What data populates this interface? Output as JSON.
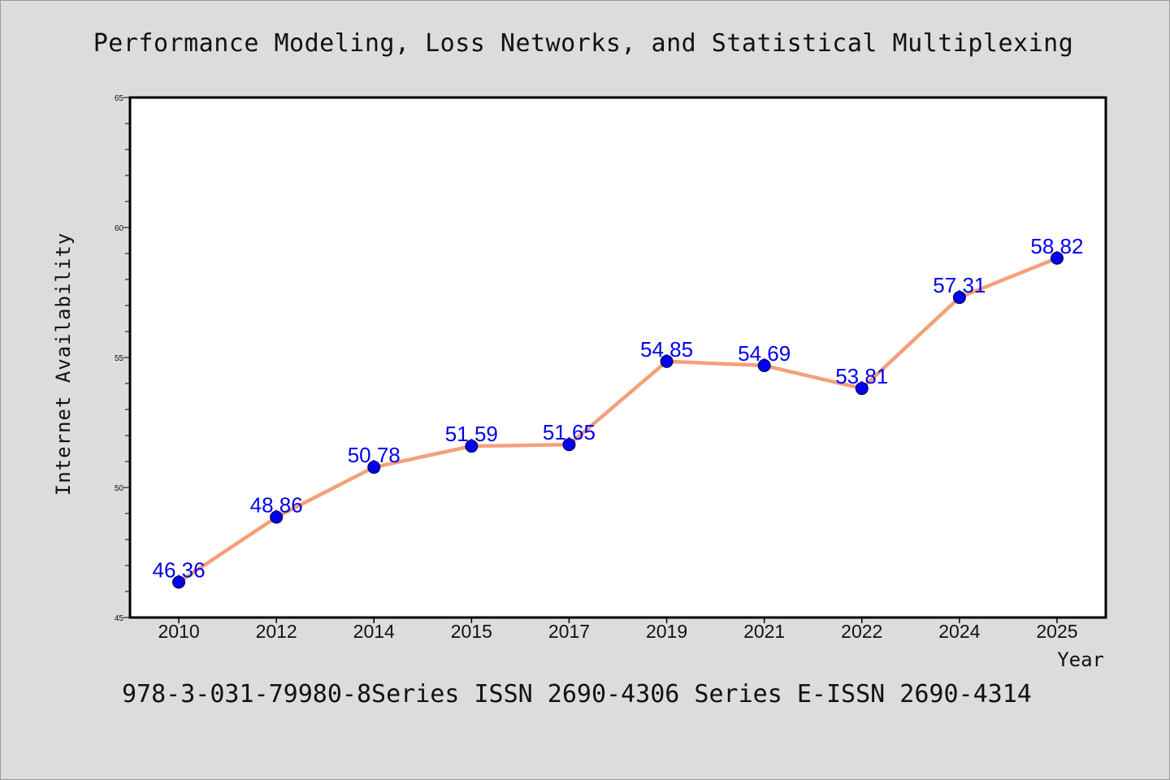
{
  "colors": {
    "background": "#dcdcdc",
    "plot_background": "#ffffff",
    "line": "#f4a07a",
    "marker": "#0000ee",
    "label": "#0000ee",
    "text": "#111111"
  },
  "footer": "978-3-031-79980-8Series ISSN 2690-4306 Series E-ISSN 2690-4314",
  "chart_data": {
    "type": "line",
    "title": "Performance Modeling, Loss Networks, and Statistical Multiplexing",
    "xlabel": "Year",
    "ylabel": "Internet Availability",
    "categories": [
      "2010",
      "2012",
      "2014",
      "2015",
      "2017",
      "2019",
      "2021",
      "2022",
      "2024",
      "2025"
    ],
    "series": [
      {
        "values": [
          46.36,
          48.86,
          50.78,
          51.59,
          51.65,
          54.85,
          54.69,
          53.81,
          57.31,
          58.82
        ],
        "data_labels": [
          "46.36",
          "48.86",
          "50.78",
          "51.59",
          "51.65",
          "54.85",
          "54.69",
          "53.81",
          "57.31",
          "58.82"
        ]
      }
    ],
    "ylim": [
      45,
      65
    ],
    "yticks": [
      "45",
      "50",
      "55",
      "60",
      "65"
    ],
    "grid": false,
    "legend": "none"
  }
}
